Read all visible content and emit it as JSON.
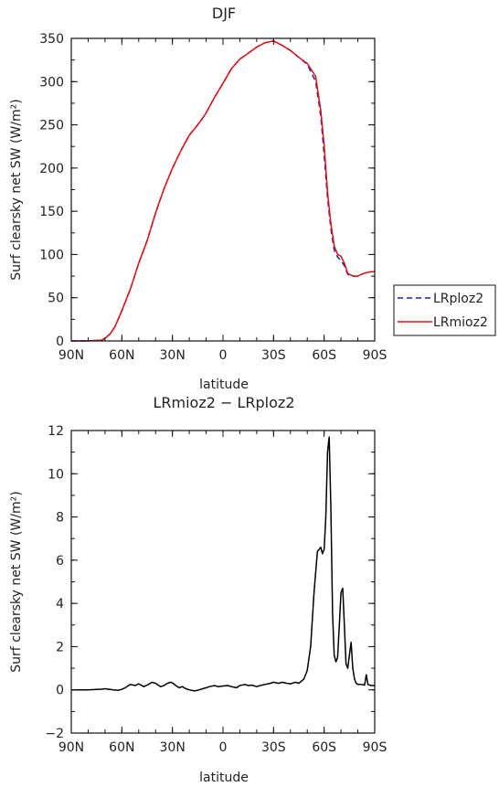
{
  "chart_data": [
    {
      "type": "line",
      "title": "DJF",
      "xlabel": "latitude",
      "ylabel": "Surf clearsky net SW (W/m²)",
      "ylim": [
        0,
        350
      ],
      "xlim": [
        90,
        -90
      ],
      "x_ticks": [
        90,
        60,
        30,
        0,
        -30,
        -60,
        -90
      ],
      "x_tick_labels": [
        "90N",
        "60N",
        "30N",
        "0",
        "30S",
        "60S",
        "90S"
      ],
      "y_ticks": [
        0,
        50,
        100,
        150,
        200,
        250,
        300,
        350
      ],
      "y_tick_labels": [
        "0",
        "50",
        "100",
        "150",
        "200",
        "250",
        "300",
        "350"
      ],
      "legend": {
        "placement": "right",
        "entries": [
          "LRploz2",
          "LRmioz2"
        ]
      },
      "series": [
        {
          "name": "LRploz2",
          "color": "#1f1fd0",
          "dash": "dashed",
          "x": [
            90,
            80,
            72,
            70,
            67,
            64,
            60,
            55,
            50,
            45,
            40,
            35,
            30,
            25,
            20,
            15,
            12,
            10,
            5,
            0,
            -5,
            -10,
            -15,
            -20,
            -25,
            -30,
            -35,
            -40,
            -45,
            -50,
            -55,
            -58,
            -60,
            -62,
            -64,
            -66,
            -68,
            -70,
            -72,
            -74,
            -76,
            -78,
            -80,
            -82,
            -85,
            -88,
            -90
          ],
          "y": [
            0,
            0,
            1,
            3,
            8,
            17,
            35,
            60,
            90,
            116,
            148,
            176,
            200,
            220,
            238,
            250,
            258,
            264,
            282,
            298,
            315,
            326,
            333,
            340,
            345,
            347,
            342,
            336,
            328,
            320,
            300,
            260,
            215,
            165,
            130,
            105,
            97,
            93,
            87,
            77,
            75,
            75,
            75,
            77,
            79,
            80,
            80
          ]
        },
        {
          "name": "LRmioz2",
          "color": "#e01010",
          "dash": "solid",
          "x": [
            90,
            80,
            72,
            70,
            67,
            64,
            60,
            55,
            50,
            45,
            40,
            35,
            30,
            25,
            20,
            15,
            12,
            10,
            5,
            0,
            -5,
            -10,
            -15,
            -20,
            -25,
            -30,
            -35,
            -40,
            -45,
            -50,
            -55,
            -58,
            -60,
            -62,
            -64,
            -66,
            -68,
            -70,
            -72,
            -74,
            -76,
            -78,
            -80,
            -82,
            -85,
            -88,
            -90
          ],
          "y": [
            0,
            0,
            1,
            3,
            8,
            17,
            35,
            60,
            90,
            116,
            148,
            176,
            200,
            220,
            238,
            250,
            258,
            264,
            282,
            298,
            315,
            326,
            333,
            340,
            345,
            347,
            342,
            336,
            328,
            321,
            306,
            266,
            226,
            172,
            136,
            110,
            100,
            98,
            90,
            78,
            76,
            75,
            75,
            77,
            79,
            80,
            80
          ]
        }
      ]
    },
    {
      "type": "line",
      "title": "LRmioz2 − LRploz2",
      "xlabel": "latitude",
      "ylabel": "Surf clearsky net SW (W/m²)",
      "ylim": [
        -2,
        12
      ],
      "xlim": [
        90,
        -90
      ],
      "x_ticks": [
        90,
        60,
        30,
        0,
        -30,
        -60,
        -90
      ],
      "x_tick_labels": [
        "90N",
        "60N",
        "30N",
        "0",
        "30S",
        "60S",
        "90S"
      ],
      "y_ticks": [
        -2,
        0,
        2,
        4,
        6,
        8,
        10,
        12
      ],
      "y_tick_labels": [
        "−2",
        "0",
        "2",
        "4",
        "6",
        "8",
        "10",
        "12"
      ],
      "series": [
        {
          "color": "#000000",
          "x": [
            90,
            80,
            75,
            72,
            70,
            67,
            65,
            62,
            60,
            58,
            55,
            52,
            50,
            47,
            45,
            42,
            40,
            37,
            35,
            33,
            31,
            30,
            28,
            26,
            24,
            22,
            20,
            17,
            15,
            12,
            10,
            8,
            5,
            3,
            0,
            -3,
            -5,
            -8,
            -10,
            -13,
            -15,
            -17,
            -20,
            -22,
            -25,
            -28,
            -30,
            -33,
            -35,
            -38,
            -40,
            -43,
            -45,
            -48,
            -50,
            -52,
            -54,
            -56,
            -58,
            -59,
            -60,
            -61,
            -62,
            -63,
            -64,
            -65,
            -66,
            -67,
            -68,
            -69,
            -70,
            -71,
            -72,
            -73,
            -74,
            -75,
            -76,
            -77,
            -78,
            -79,
            -80,
            -82,
            -84,
            -85,
            -86,
            -87,
            -88,
            -90
          ],
          "y": [
            0,
            0,
            0.02,
            0.03,
            0.05,
            0.02,
            0,
            -0.02,
            0.02,
            0.1,
            0.25,
            0.2,
            0.28,
            0.15,
            0.22,
            0.35,
            0.3,
            0.15,
            0.2,
            0.3,
            0.35,
            0.32,
            0.2,
            0.1,
            0.15,
            0.05,
            0.0,
            -0.05,
            -0.02,
            0.05,
            0.1,
            0.15,
            0.2,
            0.15,
            0.18,
            0.2,
            0.15,
            0.1,
            0.2,
            0.25,
            0.2,
            0.22,
            0.15,
            0.2,
            0.25,
            0.3,
            0.35,
            0.3,
            0.35,
            0.3,
            0.28,
            0.35,
            0.3,
            0.5,
            0.9,
            2.0,
            4.5,
            6.4,
            6.6,
            6.3,
            6.5,
            8.0,
            11.0,
            11.7,
            8.5,
            3.5,
            1.6,
            1.3,
            1.5,
            3.0,
            4.5,
            4.7,
            3.0,
            1.2,
            1.0,
            1.6,
            2.2,
            1.0,
            0.5,
            0.3,
            0.25,
            0.25,
            0.22,
            0.7,
            0.25,
            0.22,
            0.2,
            0.2
          ]
        }
      ]
    }
  ]
}
